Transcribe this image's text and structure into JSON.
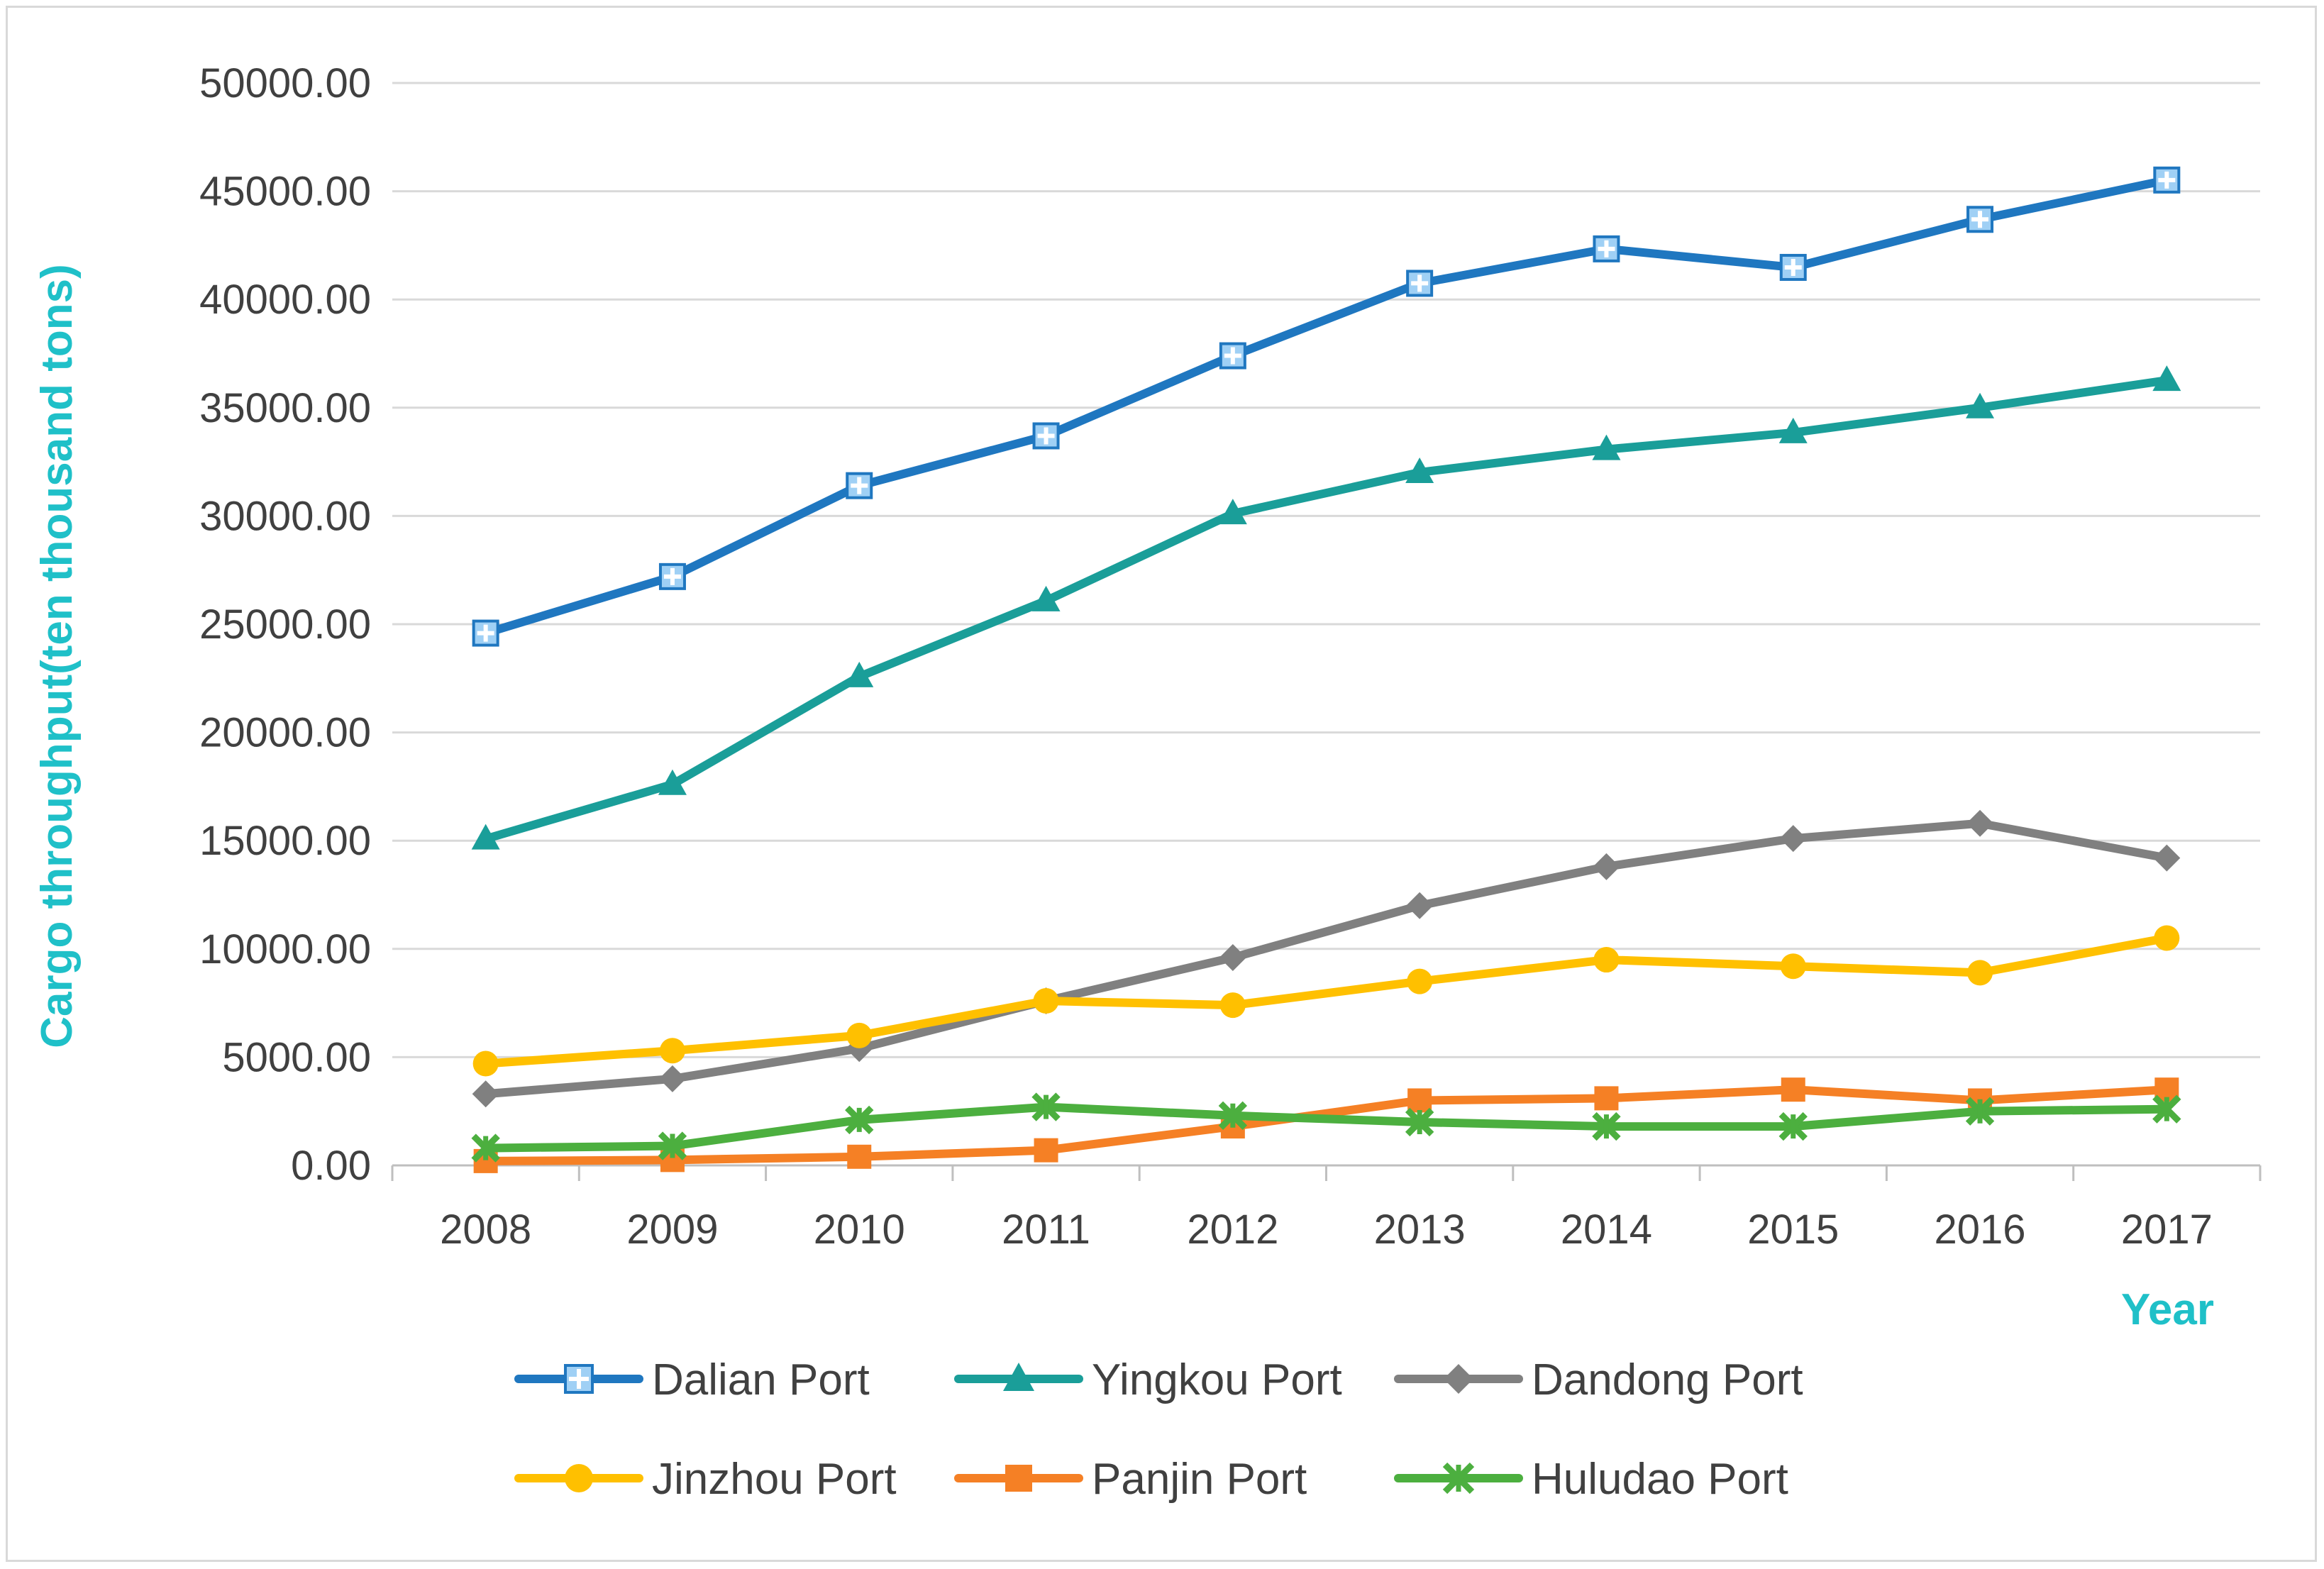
{
  "chart_data": {
    "type": "line",
    "categories": [
      "2008",
      "2009",
      "2010",
      "2011",
      "2012",
      "2013",
      "2014",
      "2015",
      "2016",
      "2017"
    ],
    "series": [
      {
        "name": "Dalian Port",
        "color": "#1f77c0",
        "marker": "plus-square",
        "values": [
          24588,
          27200,
          31400,
          33700,
          37400,
          40746,
          42337,
          41482,
          43700,
          45517
        ]
      },
      {
        "name": "Yingkou Port",
        "color": "#1a9e99",
        "marker": "triangle",
        "values": [
          15085,
          17603,
          22579,
          26085,
          30107,
          32013,
          33073,
          33849,
          35000,
          36267
        ]
      },
      {
        "name": "Dandong Port",
        "color": "#808080",
        "marker": "diamond",
        "values": [
          3300,
          4000,
          5400,
          7600,
          9600,
          12000,
          13800,
          15100,
          15800,
          14200
        ]
      },
      {
        "name": "Jinzhou Port",
        "color": "#ffc000",
        "marker": "circle",
        "values": [
          4700,
          5300,
          6000,
          7600,
          7400,
          8500,
          9500,
          9200,
          8900,
          10500
        ]
      },
      {
        "name": "Panjin Port",
        "color": "#f58025",
        "marker": "square",
        "values": [
          200,
          250,
          400,
          700,
          1800,
          3000,
          3100,
          3500,
          3000,
          3500
        ]
      },
      {
        "name": "Huludao Port",
        "color": "#4caf3f",
        "marker": "x",
        "values": [
          800,
          900,
          2100,
          2700,
          2300,
          2000,
          1800,
          1800,
          2500,
          2600
        ]
      }
    ],
    "ylim": [
      0,
      50000
    ],
    "ytick_step": 5000,
    "ytick_decimals": 2,
    "ylabel": "Cargo throughput(ten thousand tons)",
    "xlabel": "Year",
    "grid": true,
    "legend_position": "bottom",
    "axis_title_color": "#1fc0c8"
  }
}
